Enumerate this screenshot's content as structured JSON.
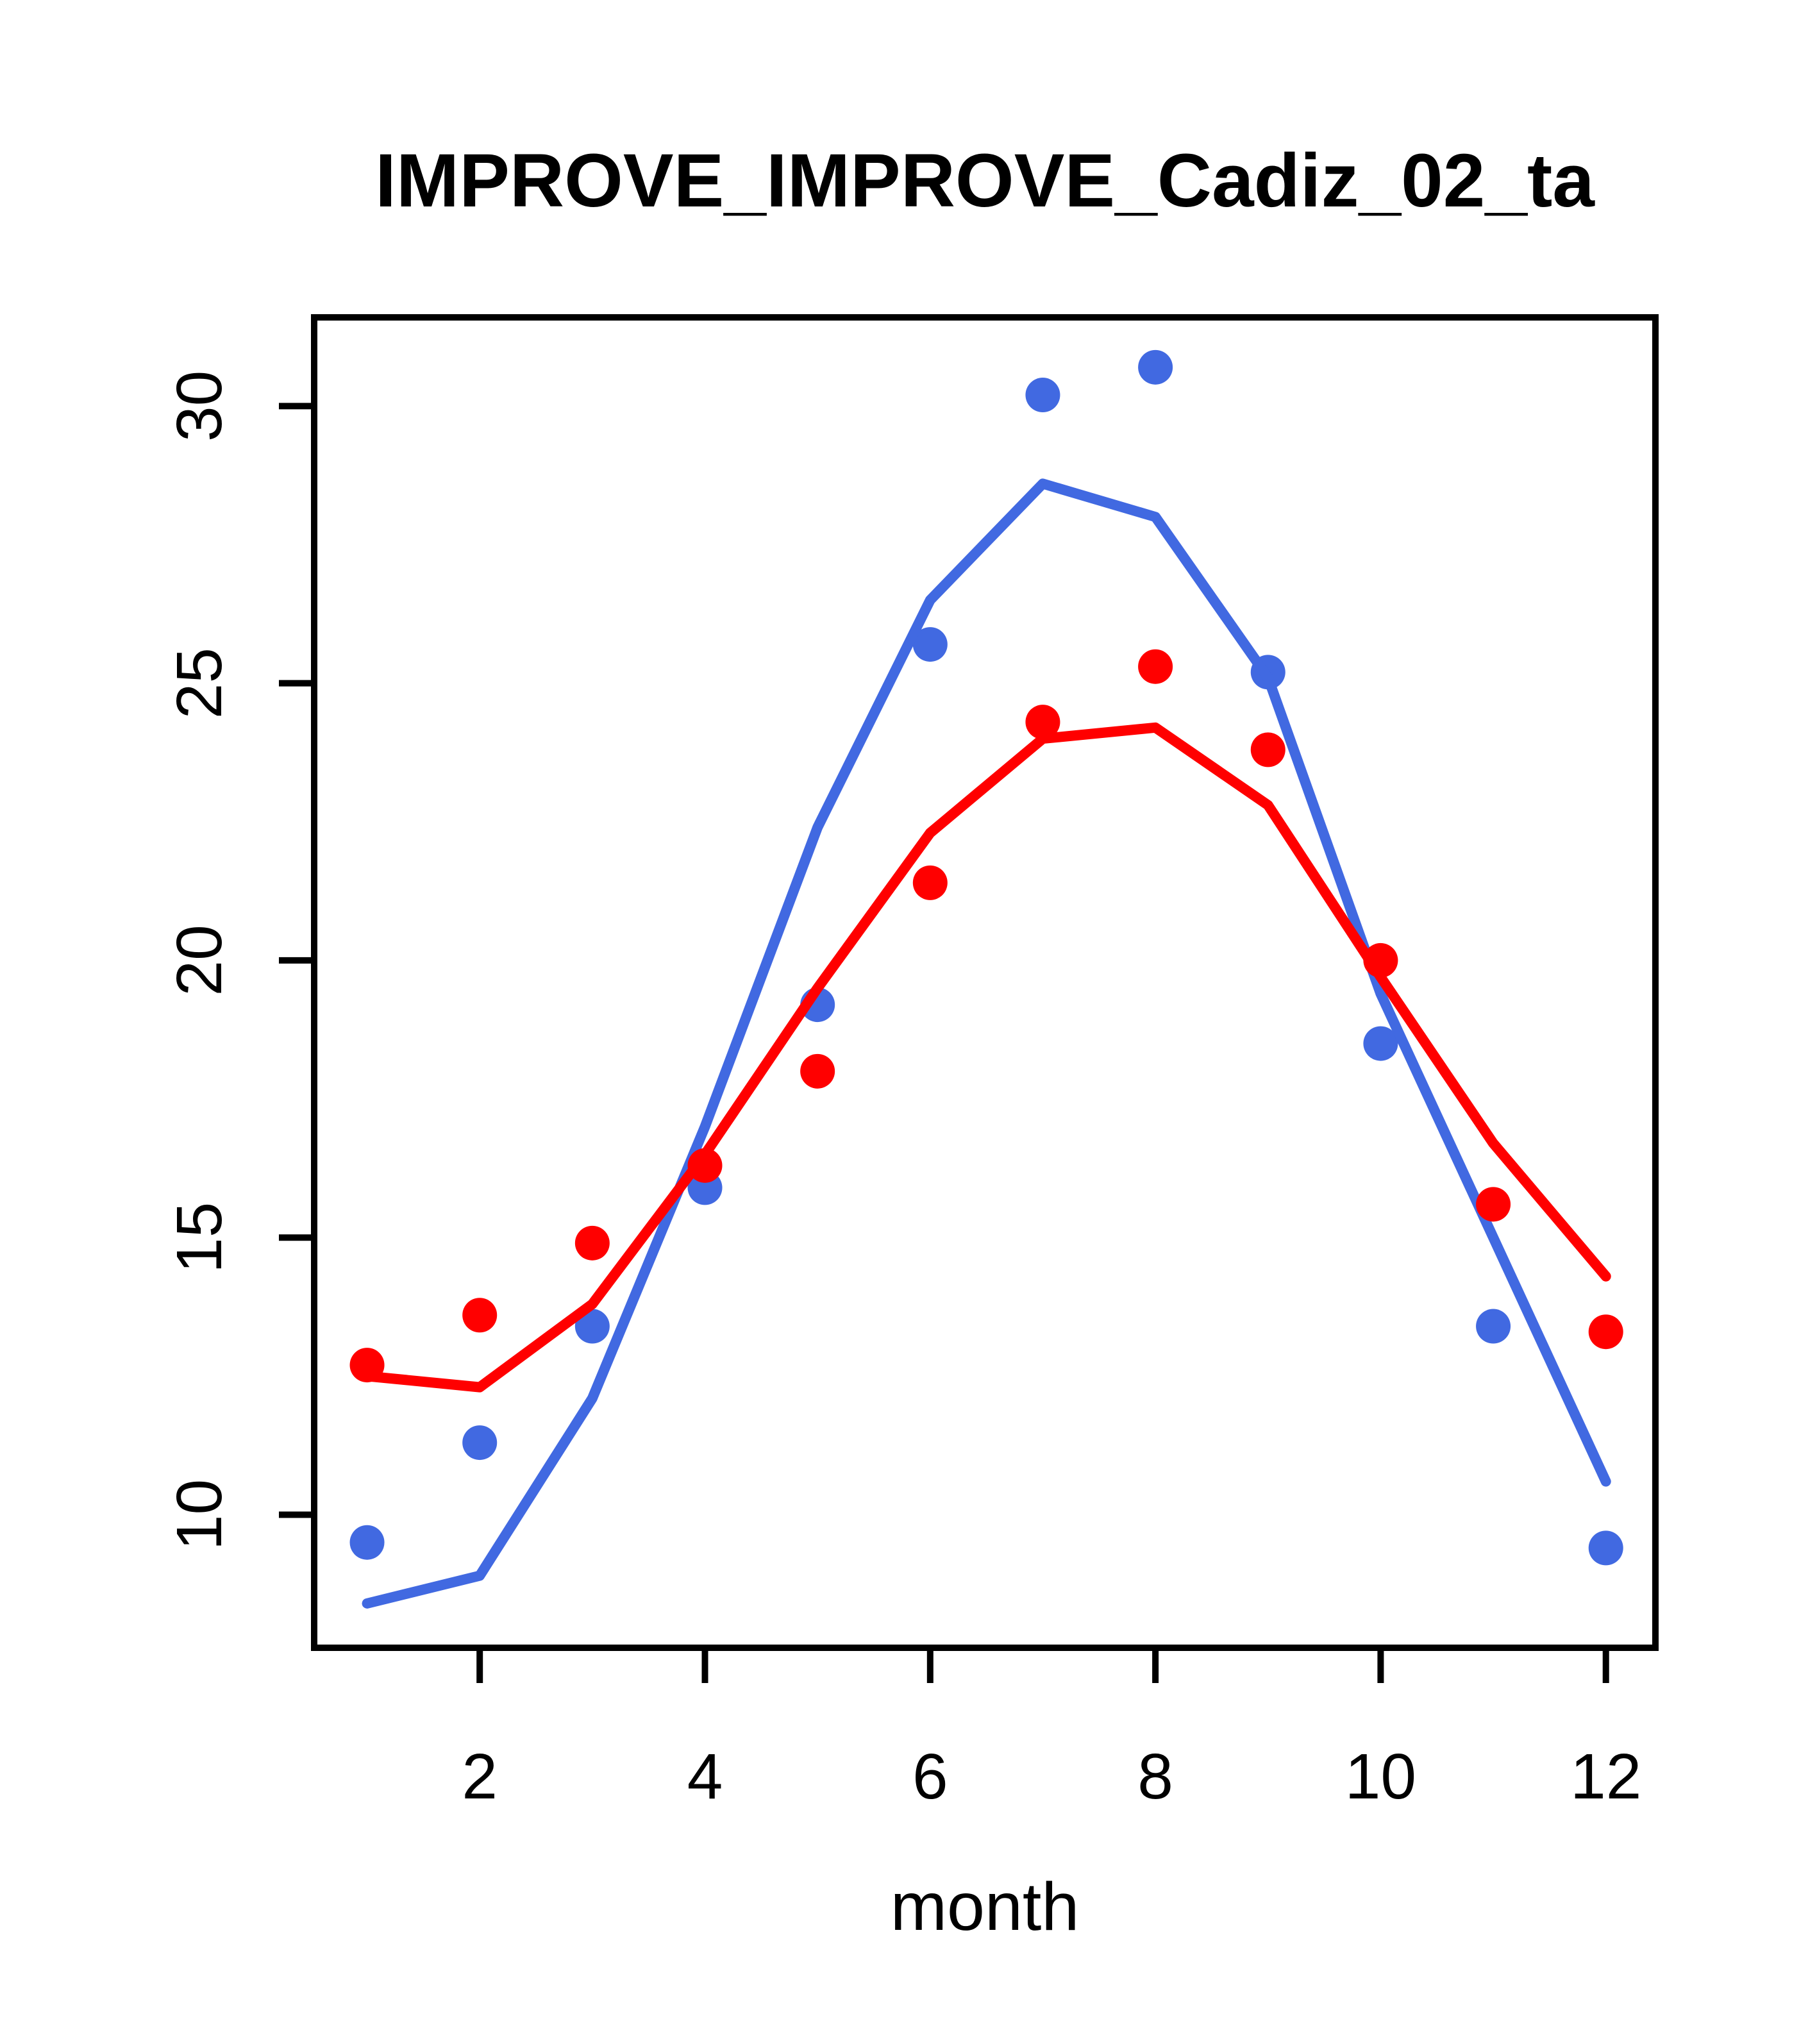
{
  "title": "IMPROVE_IMPROVE_Cadiz_02_ta",
  "colors": {
    "series_blue": "#4169E1",
    "series_red": "#FF0000",
    "axis": "#000000",
    "background": "#FFFFFF"
  },
  "chart_data": {
    "type": "scatter",
    "title": "IMPROVE_IMPROVE_Cadiz_02_ta",
    "xlabel": "month",
    "ylabel": "",
    "x": [
      1,
      2,
      3,
      4,
      5,
      6,
      7,
      8,
      9,
      10,
      11,
      12
    ],
    "xticks": [
      2,
      4,
      6,
      8,
      10,
      12
    ],
    "yticks": [
      10,
      15,
      20,
      25,
      30
    ],
    "xlim": [
      0.53,
      12.44
    ],
    "ylim": [
      7.6,
      31.6
    ],
    "grid": false,
    "legend": "none",
    "series": [
      {
        "name": "blue-monthly-points",
        "style": "points",
        "color": "#4169E1",
        "values": [
          9.5,
          11.3,
          13.4,
          15.9,
          19.2,
          25.7,
          30.2,
          30.7,
          25.2,
          18.5,
          13.4,
          9.4
        ]
      },
      {
        "name": "blue-fitted-line",
        "style": "line",
        "color": "#4169E1",
        "values": [
          8.4,
          8.9,
          12.1,
          17.0,
          22.4,
          26.5,
          28.6,
          28.0,
          25.1,
          19.4,
          15.0,
          10.6
        ]
      },
      {
        "name": "red-monthly-points",
        "style": "points",
        "color": "#FF0000",
        "values": [
          12.7,
          13.6,
          14.9,
          16.3,
          18.0,
          21.4,
          24.3,
          25.3,
          23.8,
          20.0,
          15.6,
          13.3
        ]
      },
      {
        "name": "red-fitted-line",
        "style": "line",
        "color": "#FF0000",
        "values": [
          12.5,
          12.3,
          13.8,
          16.5,
          19.5,
          22.3,
          24.0,
          24.2,
          22.8,
          19.7,
          16.7,
          14.3
        ]
      }
    ]
  }
}
